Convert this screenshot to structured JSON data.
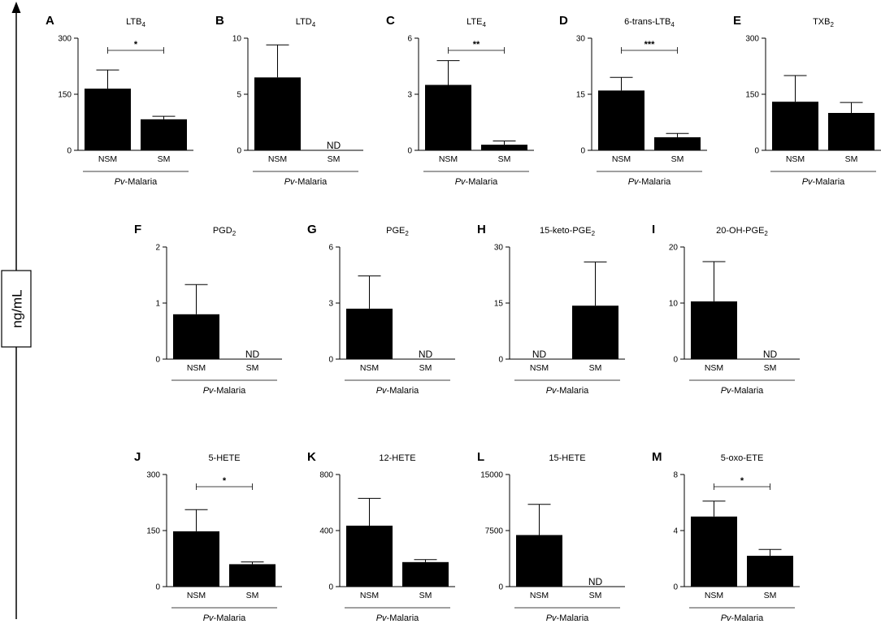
{
  "y_axis_label": "ng/mL",
  "chart_data": [
    {
      "id": "A",
      "letter": "A",
      "title": "LTB",
      "title_sub": "4",
      "title_suffix": "",
      "type": "bar",
      "categories": [
        "NSM",
        "SM"
      ],
      "values": [
        165,
        83
      ],
      "errors": [
        50,
        8
      ],
      "nd": [
        false,
        false
      ],
      "ylim": [
        0,
        300
      ],
      "ticks": [
        "0",
        "150",
        "300"
      ],
      "significance": "*",
      "group_label_italic": "Pv",
      "group_label_rest": "-Malaria"
    },
    {
      "id": "B",
      "letter": "B",
      "title": "LTD",
      "title_sub": "4",
      "title_suffix": "",
      "type": "bar",
      "categories": [
        "NSM",
        "SM"
      ],
      "values": [
        6.5,
        0
      ],
      "errors": [
        2.9,
        0
      ],
      "nd": [
        false,
        true
      ],
      "nd_text": "ND",
      "ylim": [
        0,
        10
      ],
      "ticks": [
        "0",
        "5",
        "10"
      ],
      "significance": "",
      "group_label_italic": "Pv",
      "group_label_rest": "-Malaria"
    },
    {
      "id": "C",
      "letter": "C",
      "title": "LTE",
      "title_sub": "4",
      "title_suffix": "",
      "type": "bar",
      "categories": [
        "NSM",
        "SM"
      ],
      "values": [
        3.5,
        0.3
      ],
      "errors": [
        1.3,
        0.2
      ],
      "nd": [
        false,
        false
      ],
      "ylim": [
        0,
        6
      ],
      "ticks": [
        "0",
        "3",
        "6"
      ],
      "significance": "**",
      "group_label_italic": "Pv",
      "group_label_rest": "-Malaria"
    },
    {
      "id": "D",
      "letter": "D",
      "title": "6-trans-LTB",
      "title_sub": "4",
      "title_suffix": "",
      "type": "bar",
      "categories": [
        "NSM",
        "SM"
      ],
      "values": [
        16,
        3.5
      ],
      "errors": [
        3.5,
        1
      ],
      "nd": [
        false,
        false
      ],
      "ylim": [
        0,
        30
      ],
      "ticks": [
        "0",
        "15",
        "30"
      ],
      "significance": "***",
      "group_label_italic": "Pv",
      "group_label_rest": "-Malaria"
    },
    {
      "id": "E",
      "letter": "E",
      "title": "TXB",
      "title_sub": "2",
      "title_suffix": "",
      "type": "bar",
      "categories": [
        "NSM",
        "SM"
      ],
      "values": [
        130,
        100
      ],
      "errors": [
        70,
        28
      ],
      "nd": [
        false,
        false
      ],
      "ylim": [
        0,
        300
      ],
      "ticks": [
        "0",
        "150",
        "300"
      ],
      "significance": "",
      "group_label_italic": "Pv",
      "group_label_rest": "-Malaria"
    },
    {
      "id": "F",
      "letter": "F",
      "title": "PGD",
      "title_sub": "2",
      "title_suffix": "",
      "type": "bar",
      "categories": [
        "NSM",
        "SM"
      ],
      "values": [
        0.8,
        0
      ],
      "errors": [
        0.53,
        0
      ],
      "nd": [
        false,
        true
      ],
      "nd_text": "ND",
      "ylim": [
        0,
        2
      ],
      "ticks": [
        "0",
        "1",
        "2"
      ],
      "significance": "",
      "group_label_italic": "Pv",
      "group_label_rest": "-Malaria"
    },
    {
      "id": "G",
      "letter": "G",
      "title": "PGE",
      "title_sub": "2",
      "title_suffix": "",
      "type": "bar",
      "categories": [
        "NSM",
        "SM"
      ],
      "values": [
        2.7,
        0
      ],
      "errors": [
        1.75,
        0
      ],
      "nd": [
        false,
        true
      ],
      "nd_text": "ND",
      "ylim": [
        0,
        6
      ],
      "ticks": [
        "0",
        "3",
        "6"
      ],
      "significance": "",
      "group_label_italic": "Pv",
      "group_label_rest": "-Malaria"
    },
    {
      "id": "H",
      "letter": "H",
      "title": "15-keto-PGE",
      "title_sub": "2",
      "title_suffix": "",
      "type": "bar",
      "categories": [
        "NSM",
        "SM"
      ],
      "values": [
        0,
        14.3
      ],
      "errors": [
        0,
        11.7
      ],
      "nd": [
        true,
        false
      ],
      "nd_text": "ND",
      "ylim": [
        0,
        30
      ],
      "ticks": [
        "0",
        "15",
        "30"
      ],
      "significance": "",
      "group_label_italic": "Pv",
      "group_label_rest": "-Malaria"
    },
    {
      "id": "I",
      "letter": "I",
      "title": "20-OH-PGE",
      "title_sub": "2",
      "title_suffix": "",
      "type": "bar",
      "categories": [
        "NSM",
        "SM"
      ],
      "values": [
        10.3,
        0
      ],
      "errors": [
        7.1,
        0
      ],
      "nd": [
        false,
        true
      ],
      "nd_text": "ND",
      "ylim": [
        0,
        20
      ],
      "ticks": [
        "0",
        "10",
        "20"
      ],
      "significance": "",
      "group_label_italic": "Pv",
      "group_label_rest": "-Malaria"
    },
    {
      "id": "J",
      "letter": "J",
      "title": "5-HETE",
      "title_sub": "",
      "title_suffix": "",
      "type": "bar",
      "categories": [
        "NSM",
        "SM"
      ],
      "values": [
        148,
        60
      ],
      "errors": [
        58,
        6
      ],
      "nd": [
        false,
        false
      ],
      "ylim": [
        0,
        300
      ],
      "ticks": [
        "0",
        "150",
        "300"
      ],
      "significance": "*",
      "group_label_italic": "Pv",
      "group_label_rest": "-Malaria"
    },
    {
      "id": "K",
      "letter": "K",
      "title": "12-HETE",
      "title_sub": "",
      "title_suffix": "",
      "type": "bar",
      "categories": [
        "NSM",
        "SM"
      ],
      "values": [
        435,
        175
      ],
      "errors": [
        195,
        18
      ],
      "nd": [
        false,
        false
      ],
      "ylim": [
        0,
        800
      ],
      "ticks": [
        "0",
        "400",
        "800"
      ],
      "significance": "",
      "group_label_italic": "Pv",
      "group_label_rest": "-Malaria"
    },
    {
      "id": "L",
      "letter": "L",
      "title": "15-HETE",
      "title_sub": "",
      "title_suffix": "",
      "type": "bar",
      "categories": [
        "NSM",
        "SM"
      ],
      "values": [
        6900,
        0
      ],
      "errors": [
        4100,
        0
      ],
      "nd": [
        false,
        true
      ],
      "nd_text": "ND",
      "ylim": [
        0,
        15000
      ],
      "ticks": [
        "0",
        "7500",
        "15000"
      ],
      "significance": "",
      "group_label_italic": "Pv",
      "group_label_rest": "-Malaria"
    },
    {
      "id": "M",
      "letter": "M",
      "title": "5-oxo-ETE",
      "title_sub": "",
      "title_suffix": "",
      "type": "bar",
      "categories": [
        "NSM",
        "SM"
      ],
      "values": [
        5,
        2.2
      ],
      "errors": [
        1.1,
        0.45
      ],
      "nd": [
        false,
        false
      ],
      "ylim": [
        0,
        8
      ],
      "ticks": [
        "0",
        "4",
        "8"
      ],
      "significance": "*",
      "group_label_italic": "Pv",
      "group_label_rest": "-Malaria"
    }
  ]
}
